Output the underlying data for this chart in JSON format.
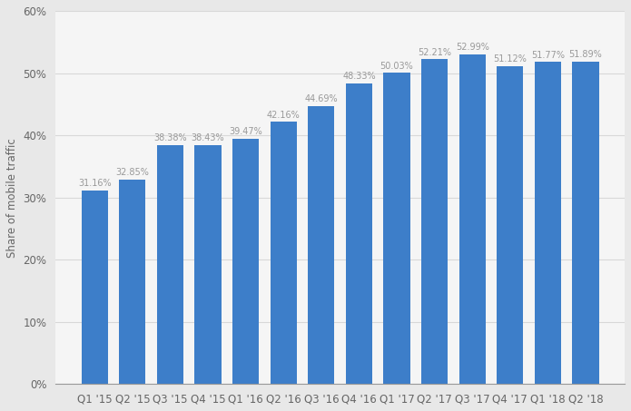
{
  "categories": [
    "Q1 '15",
    "Q2 '15",
    "Q3 '15",
    "Q4 '15",
    "Q1 '16",
    "Q2 '16",
    "Q3 '16",
    "Q4 '16",
    "Q1 '17",
    "Q2 '17",
    "Q3 '17",
    "Q4 '17",
    "Q1 '18",
    "Q2 '18"
  ],
  "values": [
    31.16,
    32.85,
    38.38,
    38.43,
    39.47,
    42.16,
    44.69,
    48.33,
    50.03,
    52.21,
    52.99,
    51.12,
    51.77,
    51.89
  ],
  "bar_color": "#3d7ec9",
  "ylabel": "Share of mobile traffic",
  "ylim": [
    0,
    60
  ],
  "yticks": [
    0,
    10,
    20,
    30,
    40,
    50,
    60
  ],
  "background_color": "#e8e8e8",
  "plot_background_color": "#f5f5f5",
  "label_color": "#999999",
  "ylabel_color": "#666666",
  "tick_color": "#666666",
  "grid_color": "#d8d8d8",
  "bar_label_fontsize": 7.0,
  "tick_fontsize": 8.5,
  "ylabel_fontsize": 8.5
}
